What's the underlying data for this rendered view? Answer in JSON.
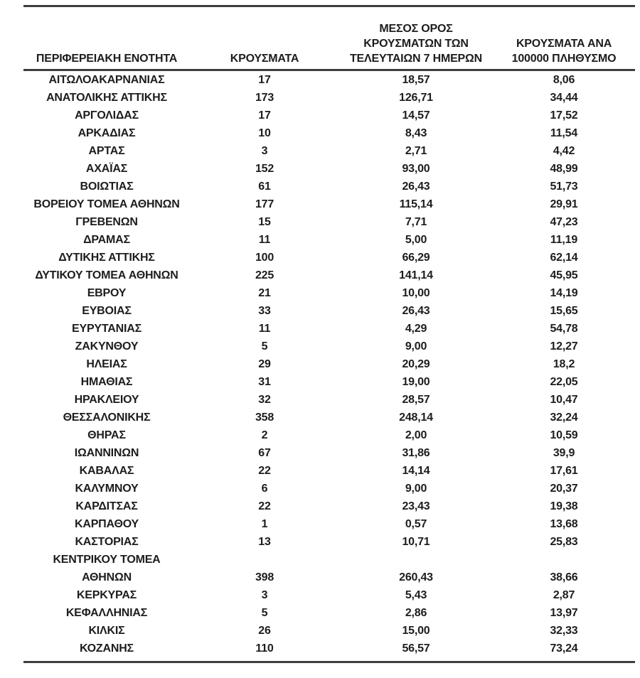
{
  "table": {
    "rule_color": "#3d3d3d",
    "text_color": "#1d1d1d",
    "headers": {
      "region": "ΠΕΡΙΦΕΡΕΙΑΚΗ ΕΝΟΤΗΤΑ",
      "cases": "ΚΡΟΥΣΜΑΤΑ",
      "avg7_lines": [
        "ΜΕΣΟΣ ΟΡΟΣ",
        "ΚΡΟΥΣΜΑΤΩΝ ΤΩΝ",
        "ΤΕΛΕΥΤΑΙΩΝ 7 ΗΜΕΡΩΝ"
      ],
      "per100k_lines": [
        "ΚΡΟΥΣΜΑΤΑ ΑΝΑ",
        "100000 ΠΛΗΘΥΣΜΟ"
      ]
    },
    "rows": [
      {
        "region": "ΑΙΤΩΛΟΑΚΑΡΝΑΝΙΑΣ",
        "cases": "17",
        "avg7": "18,57",
        "per100k": "8,06"
      },
      {
        "region": "ΑΝΑΤΟΛΙΚΗΣ ΑΤΤΙΚΗΣ",
        "cases": "173",
        "avg7": "126,71",
        "per100k": "34,44"
      },
      {
        "region": "ΑΡΓΟΛΙΔΑΣ",
        "cases": "17",
        "avg7": "14,57",
        "per100k": "17,52"
      },
      {
        "region": "ΑΡΚΑΔΙΑΣ",
        "cases": "10",
        "avg7": "8,43",
        "per100k": "11,54"
      },
      {
        "region": "ΑΡΤΑΣ",
        "cases": "3",
        "avg7": "2,71",
        "per100k": "4,42"
      },
      {
        "region": "ΑΧΑΪΑΣ",
        "cases": "152",
        "avg7": "93,00",
        "per100k": "48,99"
      },
      {
        "region": "ΒΟΙΩΤΙΑΣ",
        "cases": "61",
        "avg7": "26,43",
        "per100k": "51,73"
      },
      {
        "region": "ΒΟΡΕΙΟΥ ΤΟΜΕΑ ΑΘΗΝΩΝ",
        "cases": "177",
        "avg7": "115,14",
        "per100k": "29,91"
      },
      {
        "region": "ΓΡΕΒΕΝΩΝ",
        "cases": "15",
        "avg7": "7,71",
        "per100k": "47,23"
      },
      {
        "region": "ΔΡΑΜΑΣ",
        "cases": "11",
        "avg7": "5,00",
        "per100k": "11,19"
      },
      {
        "region": "ΔΥΤΙΚΗΣ ΑΤΤΙΚΗΣ",
        "cases": "100",
        "avg7": "66,29",
        "per100k": "62,14"
      },
      {
        "region": "ΔΥΤΙΚΟΥ ΤΟΜΕΑ ΑΘΗΝΩΝ",
        "cases": "225",
        "avg7": "141,14",
        "per100k": "45,95"
      },
      {
        "region": "ΕΒΡΟΥ",
        "cases": "21",
        "avg7": "10,00",
        "per100k": "14,19"
      },
      {
        "region": "ΕΥΒΟΙΑΣ",
        "cases": "33",
        "avg7": "26,43",
        "per100k": "15,65"
      },
      {
        "region": "ΕΥΡΥΤΑΝΙΑΣ",
        "cases": "11",
        "avg7": "4,29",
        "per100k": "54,78"
      },
      {
        "region": "ΖΑΚΥΝΘΟΥ",
        "cases": "5",
        "avg7": "9,00",
        "per100k": "12,27"
      },
      {
        "region": "ΗΛΕΙΑΣ",
        "cases": "29",
        "avg7": "20,29",
        "per100k": "18,2"
      },
      {
        "region": "ΗΜΑΘΙΑΣ",
        "cases": "31",
        "avg7": "19,00",
        "per100k": "22,05"
      },
      {
        "region": "ΗΡΑΚΛΕΙΟΥ",
        "cases": "32",
        "avg7": "28,57",
        "per100k": "10,47"
      },
      {
        "region": "ΘΕΣΣΑΛΟΝΙΚΗΣ",
        "cases": "358",
        "avg7": "248,14",
        "per100k": "32,24"
      },
      {
        "region": "ΘΗΡΑΣ",
        "cases": "2",
        "avg7": "2,00",
        "per100k": "10,59"
      },
      {
        "region": "ΙΩΑΝΝΙΝΩΝ",
        "cases": "67",
        "avg7": "31,86",
        "per100k": "39,9"
      },
      {
        "region": "ΚΑΒΑΛΑΣ",
        "cases": "22",
        "avg7": "14,14",
        "per100k": "17,61"
      },
      {
        "region": "ΚΑΛΥΜΝΟΥ",
        "cases": "6",
        "avg7": "9,00",
        "per100k": "20,37"
      },
      {
        "region": "ΚΑΡΔΙΤΣΑΣ",
        "cases": "22",
        "avg7": "23,43",
        "per100k": "19,38"
      },
      {
        "region": "ΚΑΡΠΑΘΟΥ",
        "cases": "1",
        "avg7": "0,57",
        "per100k": "13,68"
      },
      {
        "region": "ΚΑΣΤΟΡΙΑΣ",
        "cases": "13",
        "avg7": "10,71",
        "per100k": "25,83"
      },
      {
        "region": "ΚΕΝΤΡΙΚΟΥ ΤΟΜΕΑ ΑΘΗΝΩΝ",
        "cases": "398",
        "avg7": "260,43",
        "per100k": "38,66"
      },
      {
        "region": "ΚΕΡΚΥΡΑΣ",
        "cases": "3",
        "avg7": "5,43",
        "per100k": "2,87"
      },
      {
        "region": "ΚΕΦΑΛΛΗΝΙΑΣ",
        "cases": "5",
        "avg7": "2,86",
        "per100k": "13,97"
      },
      {
        "region": "ΚΙΛΚΙΣ",
        "cases": "26",
        "avg7": "15,00",
        "per100k": "32,33"
      },
      {
        "region": "ΚΟΖΑΝΗΣ",
        "cases": "110",
        "avg7": "56,57",
        "per100k": "73,24"
      }
    ]
  }
}
